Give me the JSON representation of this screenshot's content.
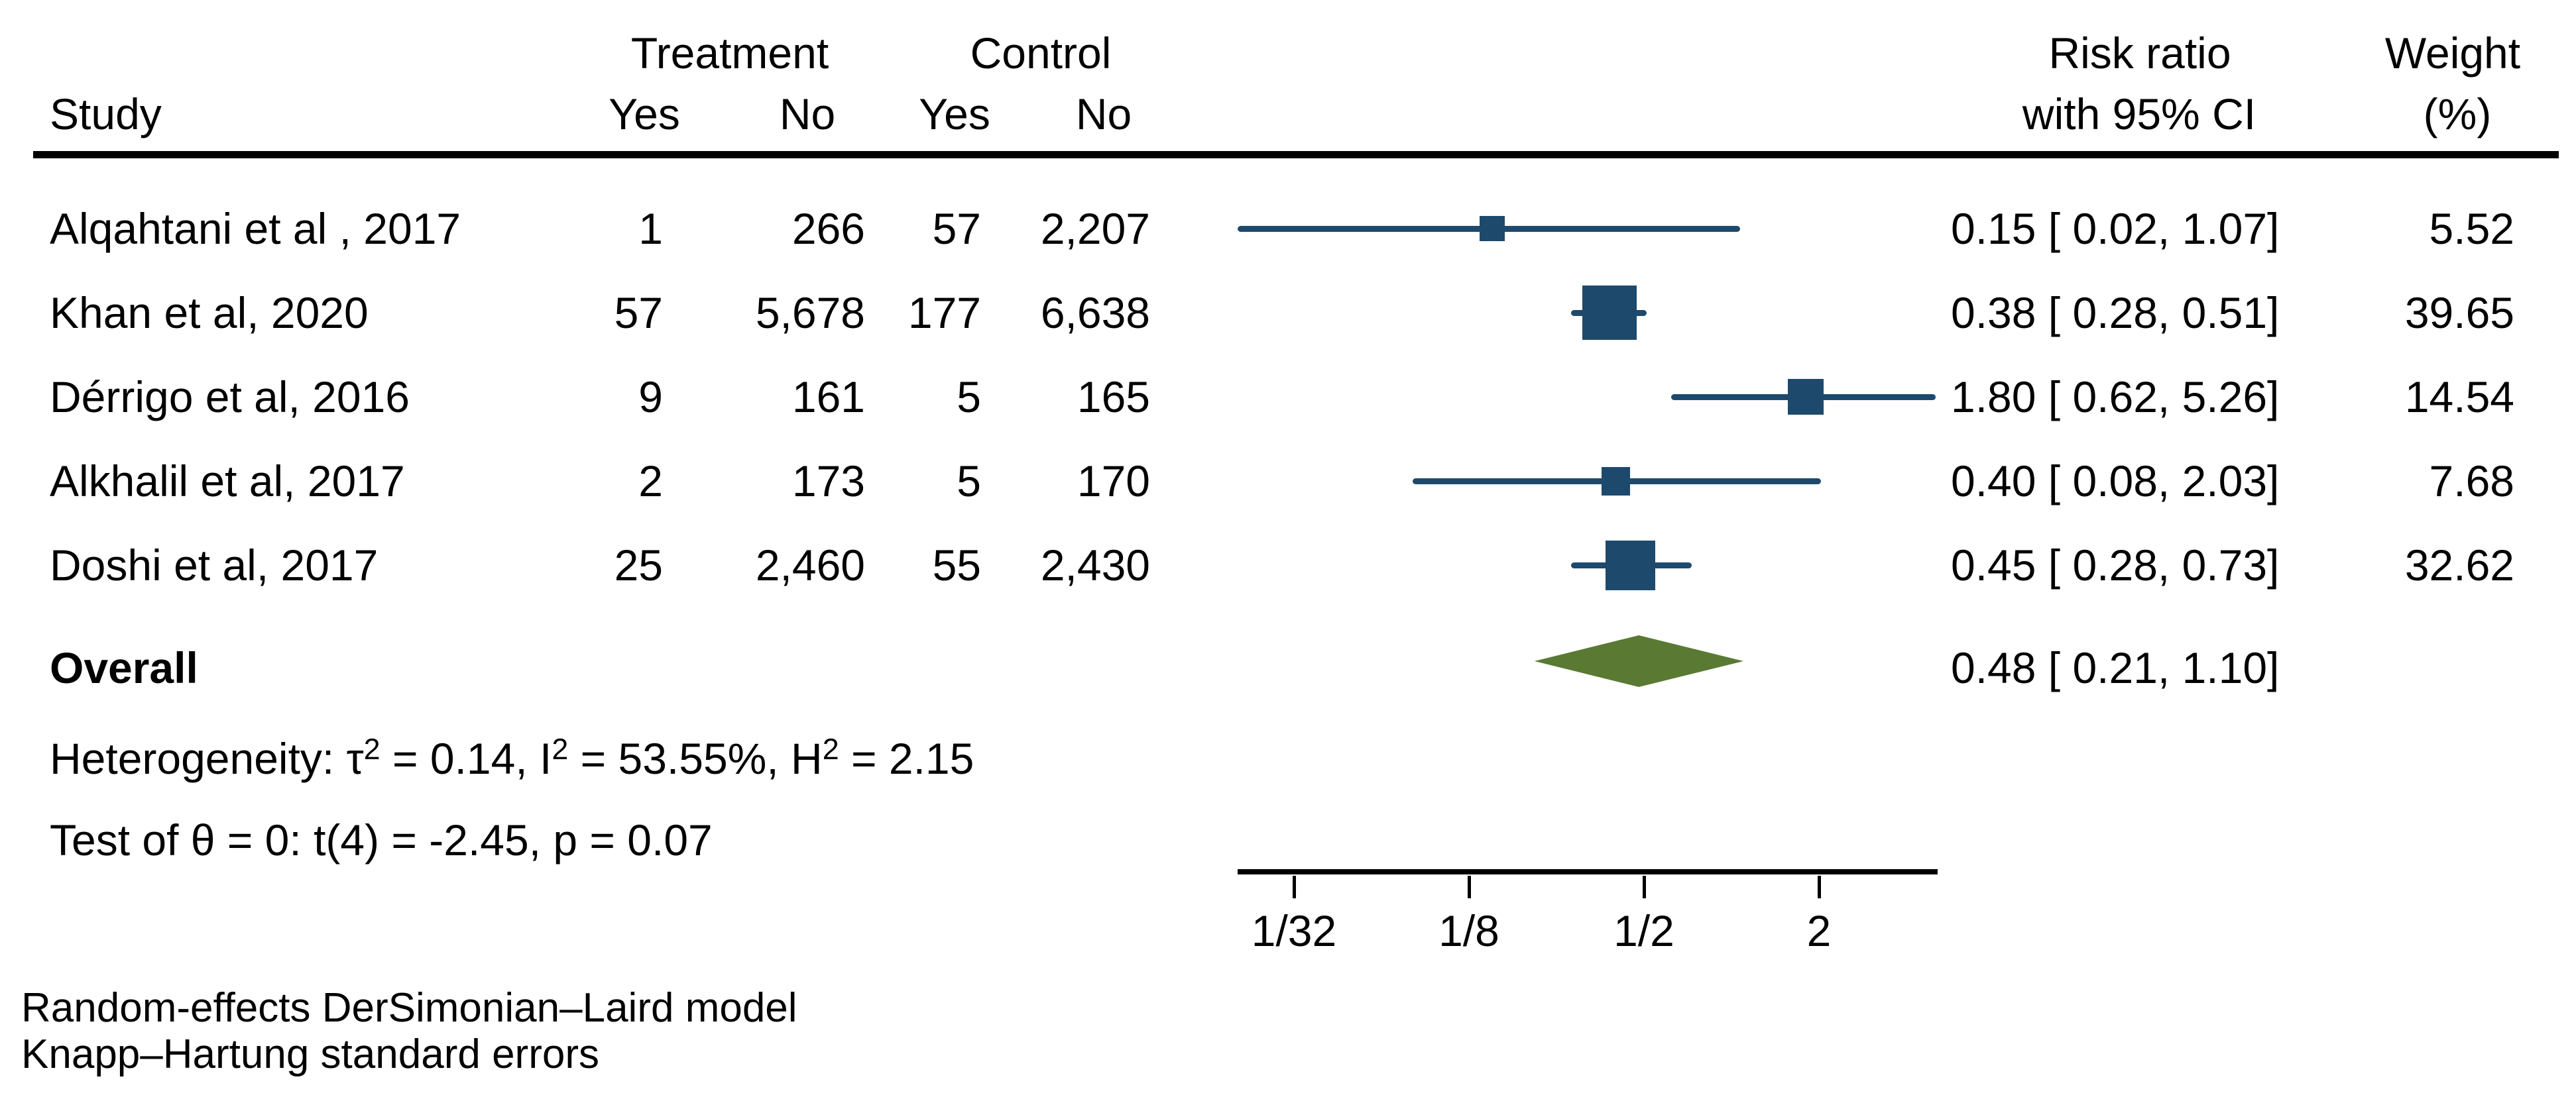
{
  "page": {
    "background": "#ffffff"
  },
  "colors": {
    "marker_blue": "#1d4a6c",
    "diamond_green": "#5a7a33",
    "text_black": "#000000"
  },
  "header": {
    "study": "Study",
    "treatment_group": "Treatment",
    "control_group": "Control",
    "treatment_yes": "Yes",
    "treatment_no": "No",
    "control_yes": "Yes",
    "control_no": "No",
    "effect_line1": "Risk ratio",
    "effect_line2": "with 95% CI",
    "weight_line1": "Weight",
    "weight_line2": "(%)"
  },
  "chart_data": {
    "type": "forest",
    "effect_measure": "Risk ratio",
    "x_axis": {
      "scale": "log",
      "ticks": [
        {
          "label": "1/32",
          "value": 0.03125
        },
        {
          "label": "1/8",
          "value": 0.125
        },
        {
          "label": "1/2",
          "value": 0.5
        },
        {
          "label": "2",
          "value": 2
        }
      ]
    },
    "studies": [
      {
        "name": "Alqahtani et al , 2017",
        "treatment_yes": "1",
        "treatment_no": "266",
        "control_yes": "57",
        "control_no": "2,207",
        "rr": 0.15,
        "ci_low": 0.02,
        "ci_high": 1.07,
        "rr_ci_label": "0.15 [ 0.02, 1.07]",
        "weight": 5.52,
        "weight_label": "5.52"
      },
      {
        "name": "Khan et al, 2020",
        "treatment_yes": "57",
        "treatment_no": "5,678",
        "control_yes": "177",
        "control_no": "6,638",
        "rr": 0.38,
        "ci_low": 0.28,
        "ci_high": 0.51,
        "rr_ci_label": "0.38 [ 0.28, 0.51]",
        "weight": 39.65,
        "weight_label": "39.65"
      },
      {
        "name": "Dérrigo et al, 2016",
        "treatment_yes": "9",
        "treatment_no": "161",
        "control_yes": "5",
        "control_no": "165",
        "rr": 1.8,
        "ci_low": 0.62,
        "ci_high": 5.26,
        "rr_ci_label": "1.80 [ 0.62, 5.26]",
        "weight": 14.54,
        "weight_label": "14.54"
      },
      {
        "name": "Alkhalil et al, 2017",
        "treatment_yes": "2",
        "treatment_no": "173",
        "control_yes": "5",
        "control_no": "170",
        "rr": 0.4,
        "ci_low": 0.08,
        "ci_high": 2.03,
        "rr_ci_label": "0.40 [ 0.08, 2.03]",
        "weight": 7.68,
        "weight_label": "7.68"
      },
      {
        "name": "Doshi et al, 2017",
        "treatment_yes": "25",
        "treatment_no": "2,460",
        "control_yes": "55",
        "control_no": "2,430",
        "rr": 0.45,
        "ci_low": 0.28,
        "ci_high": 0.73,
        "rr_ci_label": "0.45 [ 0.28, 0.73]",
        "weight": 32.62,
        "weight_label": "32.62"
      }
    ],
    "overall": {
      "label": "Overall",
      "rr": 0.48,
      "ci_low": 0.21,
      "ci_high": 1.1,
      "rr_ci_label": "0.48 [ 0.21, 1.10]"
    },
    "heterogeneity_parts": [
      {
        "t": "Heterogeneity: τ"
      },
      {
        "sup": "2"
      },
      {
        "t": " = 0.14, I"
      },
      {
        "sup": "2"
      },
      {
        "t": " = 53.55%, H"
      },
      {
        "sup": "2"
      },
      {
        "t": " = 2.15"
      }
    ],
    "test_of_theta": "Test of θ = 0: t(4) = -2.45, p = 0.07",
    "footnotes": [
      "Random-effects DerSimonian–Laird model",
      "Knapp–Hartung standard errors"
    ]
  }
}
